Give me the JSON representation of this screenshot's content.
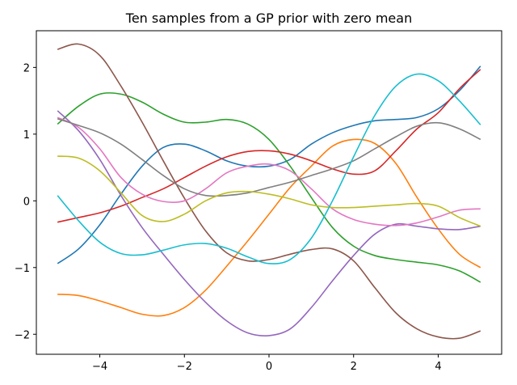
{
  "chart_data": {
    "type": "line",
    "title": "Ten samples from a GP prior with zero mean",
    "xlabel": "",
    "ylabel": "",
    "xlim": [
      -5.5,
      5.5
    ],
    "ylim": [
      -2.3,
      2.55
    ],
    "grid": false,
    "legend": "none",
    "x_ticks": [
      -4,
      -2,
      0,
      2,
      4
    ],
    "x_tick_labels": [
      "−4",
      "−2",
      "0",
      "2",
      "4"
    ],
    "y_ticks": [
      -2,
      -1,
      0,
      1,
      2
    ],
    "y_tick_labels": [
      "−2",
      "−1",
      "0",
      "1",
      "2"
    ],
    "x": [
      -5,
      -4.5,
      -4,
      -3.5,
      -3,
      -2.5,
      -2,
      -1.5,
      -1,
      -0.5,
      0,
      0.5,
      1,
      1.5,
      2,
      2.5,
      3,
      3.5,
      4,
      4.5,
      5
    ],
    "series": [
      {
        "name": "sample 1",
        "color": "#1f77b4",
        "values": [
          -0.94,
          -0.72,
          -0.36,
          0.1,
          0.52,
          0.8,
          0.85,
          0.75,
          0.6,
          0.52,
          0.52,
          0.62,
          0.85,
          1.02,
          1.13,
          1.2,
          1.22,
          1.25,
          1.38,
          1.65,
          2.02
        ]
      },
      {
        "name": "sample 2",
        "color": "#ff7f0e",
        "values": [
          -1.4,
          -1.42,
          -1.5,
          -1.6,
          -1.7,
          -1.72,
          -1.6,
          -1.34,
          -0.98,
          -0.6,
          -0.2,
          0.2,
          0.52,
          0.82,
          0.92,
          0.86,
          0.56,
          0.05,
          -0.42,
          -0.8,
          -1.0
        ]
      },
      {
        "name": "sample 3",
        "color": "#2ca02c",
        "values": [
          1.15,
          1.42,
          1.6,
          1.6,
          1.48,
          1.3,
          1.18,
          1.18,
          1.22,
          1.15,
          0.92,
          0.52,
          0.05,
          -0.4,
          -0.68,
          -0.82,
          -0.88,
          -0.92,
          -0.96,
          -1.05,
          -1.22
        ]
      },
      {
        "name": "sample 4",
        "color": "#d62728",
        "values": [
          -0.32,
          -0.25,
          -0.18,
          -0.08,
          0.05,
          0.18,
          0.35,
          0.52,
          0.66,
          0.74,
          0.75,
          0.7,
          0.6,
          0.48,
          0.4,
          0.45,
          0.75,
          1.08,
          1.32,
          1.68,
          1.97
        ]
      },
      {
        "name": "sample 5",
        "color": "#9467bd",
        "values": [
          1.35,
          1.05,
          0.62,
          0.08,
          -0.4,
          -0.8,
          -1.18,
          -1.52,
          -1.8,
          -1.98,
          -2.02,
          -1.92,
          -1.6,
          -1.2,
          -0.82,
          -0.5,
          -0.35,
          -0.38,
          -0.42,
          -0.43,
          -0.38
        ]
      },
      {
        "name": "sample 6",
        "color": "#8c564b",
        "values": [
          2.27,
          2.35,
          2.18,
          1.72,
          1.18,
          0.6,
          0.04,
          -0.45,
          -0.78,
          -0.9,
          -0.88,
          -0.8,
          -0.73,
          -0.72,
          -0.9,
          -1.3,
          -1.68,
          -1.92,
          -2.04,
          -2.06,
          -1.95
        ]
      },
      {
        "name": "sample 7",
        "color": "#e377c2",
        "values": [
          1.25,
          1.1,
          0.78,
          0.35,
          0.1,
          -0.01,
          0.0,
          0.18,
          0.42,
          0.52,
          0.55,
          0.45,
          0.18,
          -0.12,
          -0.28,
          -0.35,
          -0.37,
          -0.33,
          -0.24,
          -0.14,
          -0.12
        ]
      },
      {
        "name": "sample 8",
        "color": "#7f7f7f",
        "values": [
          1.23,
          1.13,
          1.02,
          0.85,
          0.62,
          0.38,
          0.18,
          0.08,
          0.08,
          0.12,
          0.2,
          0.28,
          0.38,
          0.48,
          0.6,
          0.78,
          0.96,
          1.12,
          1.17,
          1.08,
          0.92
        ]
      },
      {
        "name": "sample 9",
        "color": "#bcbd22",
        "values": [
          0.67,
          0.64,
          0.45,
          0.12,
          -0.22,
          -0.31,
          -0.2,
          0.0,
          0.12,
          0.14,
          0.1,
          0.03,
          -0.06,
          -0.1,
          -0.1,
          -0.08,
          -0.06,
          -0.04,
          -0.08,
          -0.25,
          -0.38
        ]
      },
      {
        "name": "sample 10",
        "color": "#17becf",
        "values": [
          0.08,
          -0.3,
          -0.62,
          -0.79,
          -0.81,
          -0.74,
          -0.66,
          -0.64,
          -0.71,
          -0.84,
          -0.94,
          -0.88,
          -0.56,
          0.0,
          0.66,
          1.28,
          1.72,
          1.9,
          1.8,
          1.5,
          1.14
        ]
      }
    ]
  }
}
